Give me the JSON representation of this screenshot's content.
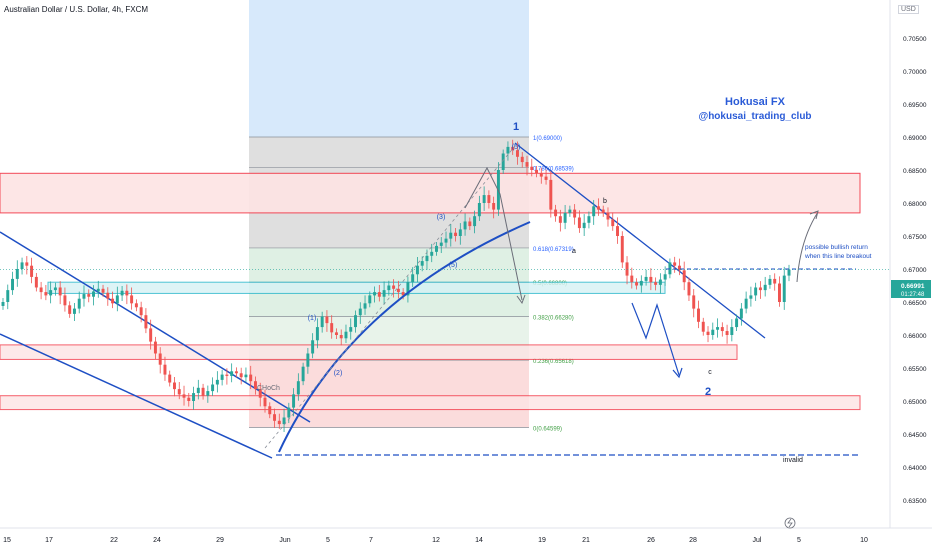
{
  "header": {
    "symbol_title": "Australian Dollar / U.S. Dollar, 4h, FXCM",
    "currency": "USD"
  },
  "branding": {
    "line1": "Hokusai FX",
    "line2": "@hokusai_trading_club"
  },
  "price_tag": {
    "price": "0.66991",
    "countdown": "01:27:48"
  },
  "colors": {
    "up": "#26a69a",
    "down": "#ef5350",
    "wave": "#1e4fc4",
    "zone_red": "#f23645",
    "zone_cyan": "#22b5c9",
    "brand": "#2a5bd7"
  },
  "annotations": {
    "wave_1": "1",
    "wave_2": "2",
    "sub_3": "(3)",
    "sub_5": "(5)",
    "sub_5_low": "(5)",
    "sub_1": "(1)",
    "sub_2": "(2)",
    "a": "a",
    "b": "b",
    "c": "c",
    "choch": "CHoCh",
    "note_line1": "possible bullish return",
    "note_line2": "when this line breakout",
    "invalid": "invalid"
  },
  "chart_data": {
    "type": "candlestick",
    "symbol": "AUDUSD",
    "timeframe": "4h",
    "y_axis_ticks": [
      "0.70500",
      "0.70000",
      "0.69500",
      "0.69000",
      "0.68500",
      "0.68000",
      "0.67500",
      "0.67000",
      "0.66500",
      "0.66000",
      "0.65500",
      "0.65000",
      "0.64500",
      "0.64000",
      "0.63500"
    ],
    "ylim": [
      0.6335,
      0.7075
    ],
    "x_axis_ticks": [
      "15",
      "17",
      "22",
      "24",
      "29",
      "Jun",
      "5",
      "7",
      "12",
      "14",
      "19",
      "21",
      "26",
      "28",
      "Jul",
      "5",
      "10"
    ],
    "fibonacci": [
      {
        "label": "1(0.69000)",
        "price": 0.69
      },
      {
        "label": "0.786(0.68539)",
        "price": 0.68539
      },
      {
        "label": "0.618(0.67319)",
        "price": 0.67319
      },
      {
        "label": "0.5(0.66800)",
        "price": 0.668
      },
      {
        "label": "0.382(0.66280)",
        "price": 0.6628
      },
      {
        "label": "0.236(0.65618)",
        "price": 0.65618
      },
      {
        "label": "0(0.64599)",
        "price": 0.64599
      }
    ],
    "zones": [
      {
        "kind": "resistance",
        "from": 0.6785,
        "to": 0.6845
      },
      {
        "kind": "support",
        "from": 0.6663,
        "to": 0.668
      },
      {
        "kind": "support",
        "from": 0.6563,
        "to": 0.6585
      },
      {
        "kind": "support",
        "from": 0.6487,
        "to": 0.6508
      }
    ],
    "closes": [
      0.665,
      0.6668,
      0.6685,
      0.67,
      0.671,
      0.6705,
      0.6688,
      0.6672,
      0.6665,
      0.666,
      0.6668,
      0.6672,
      0.666,
      0.6645,
      0.6632,
      0.664,
      0.6655,
      0.6662,
      0.6658,
      0.6666,
      0.667,
      0.6664,
      0.6655,
      0.6648,
      0.666,
      0.6667,
      0.666,
      0.6648,
      0.6642,
      0.663,
      0.661,
      0.659,
      0.6572,
      0.6555,
      0.654,
      0.6528,
      0.6518,
      0.651,
      0.6505,
      0.65,
      0.6512,
      0.652,
      0.6508,
      0.6515,
      0.6525,
      0.6532,
      0.654,
      0.6538,
      0.6545,
      0.6542,
      0.6536,
      0.654,
      0.653,
      0.6518,
      0.6505,
      0.6492,
      0.648,
      0.647,
      0.6465,
      0.6475,
      0.649,
      0.651,
      0.653,
      0.6552,
      0.6572,
      0.6592,
      0.6612,
      0.6628,
      0.6618,
      0.6604,
      0.66,
      0.6595,
      0.6605,
      0.6612,
      0.663,
      0.664,
      0.6648,
      0.666,
      0.6665,
      0.6658,
      0.6668,
      0.6675,
      0.667,
      0.6665,
      0.666,
      0.668,
      0.6692,
      0.6705,
      0.6712,
      0.672,
      0.6726,
      0.6735,
      0.674,
      0.6746,
      0.6755,
      0.675,
      0.676,
      0.6772,
      0.6765,
      0.678,
      0.68,
      0.6812,
      0.68,
      0.679,
      0.685,
      0.6875,
      0.6885,
      0.688,
      0.687,
      0.6862,
      0.6855,
      0.685,
      0.6845,
      0.684,
      0.6835,
      0.679,
      0.678,
      0.677,
      0.6785,
      0.679,
      0.6778,
      0.6762,
      0.677,
      0.678,
      0.6795,
      0.679,
      0.6785,
      0.6775,
      0.6765,
      0.675,
      0.671,
      0.669,
      0.668,
      0.6675,
      0.6682,
      0.6688,
      0.668,
      0.6676,
      0.6684,
      0.6692,
      0.671,
      0.6705,
      0.6698,
      0.668,
      0.666,
      0.664,
      0.662,
      0.6605,
      0.66,
      0.6608,
      0.6612,
      0.6606,
      0.66,
      0.6612,
      0.6625,
      0.664,
      0.6655,
      0.666,
      0.6672,
      0.6668,
      0.6676,
      0.6685,
      0.6678,
      0.665,
      0.669,
      0.6699
    ]
  }
}
